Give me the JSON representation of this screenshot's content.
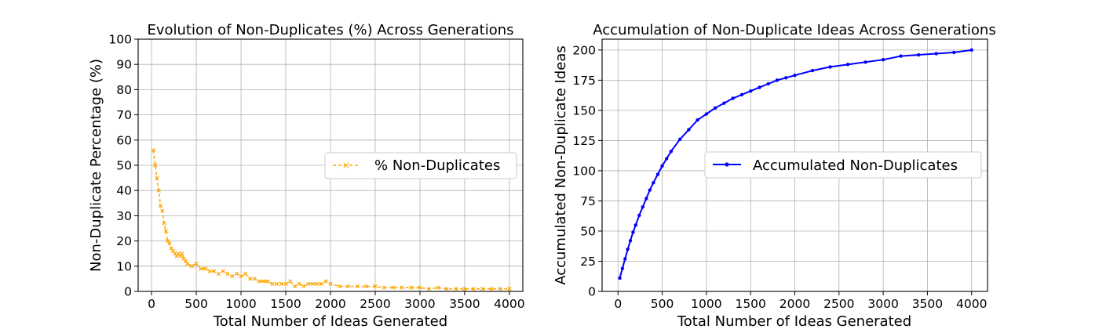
{
  "chart_data": [
    {
      "type": "line",
      "title": "Evolution of Non-Duplicates (%) Across Generations",
      "xlabel": "Total Number of Ideas Generated",
      "ylabel": "Non-Duplicate Percentage (%)",
      "xlim": [
        -150,
        4150
      ],
      "ylim": [
        0,
        100
      ],
      "xticks": [
        0,
        500,
        1000,
        1500,
        2000,
        2500,
        3000,
        3500,
        4000
      ],
      "yticks": [
        0,
        10,
        20,
        30,
        40,
        50,
        60,
        70,
        80,
        90,
        100
      ],
      "grid": true,
      "legend_position": "center-right",
      "series": [
        {
          "name": "% Non-Duplicates",
          "color": "#ffa500",
          "line_style": "dashed",
          "marker": "x",
          "x": [
            20,
            40,
            60,
            80,
            100,
            120,
            140,
            160,
            180,
            200,
            220,
            240,
            260,
            280,
            300,
            320,
            340,
            360,
            380,
            400,
            450,
            500,
            550,
            600,
            650,
            700,
            750,
            800,
            850,
            900,
            950,
            1000,
            1050,
            1100,
            1150,
            1200,
            1250,
            1300,
            1350,
            1400,
            1450,
            1500,
            1550,
            1600,
            1650,
            1700,
            1750,
            1800,
            1850,
            1900,
            1950,
            2000,
            2100,
            2200,
            2300,
            2400,
            2500,
            2600,
            2700,
            2800,
            2900,
            3000,
            3100,
            3200,
            3300,
            3400,
            3500,
            3600,
            3700,
            3800,
            3900,
            4000
          ],
          "values": [
            56,
            50,
            45,
            40,
            34,
            32,
            27,
            24,
            20,
            19,
            17,
            16,
            15,
            14,
            15,
            14,
            15,
            13,
            12,
            11,
            10,
            11,
            9,
            9,
            8,
            8,
            7,
            8,
            7,
            6,
            7,
            6,
            7,
            5,
            5,
            4,
            4,
            4,
            3,
            3,
            3,
            3,
            4,
            2,
            3,
            2,
            3,
            3,
            3,
            3,
            4,
            3,
            2,
            2,
            2,
            2,
            2,
            1.5,
            1.5,
            1.5,
            1.5,
            1.5,
            1,
            1.5,
            1,
            1,
            1,
            1,
            1,
            1,
            1,
            1
          ]
        }
      ]
    },
    {
      "type": "line",
      "title": "Accumulation of Non-Duplicate Ideas Across Generations",
      "xlabel": "Total Number of Ideas Generated",
      "ylabel": "Accumulated Non-Duplicate Ideas",
      "xlim": [
        -180,
        4180
      ],
      "ylim": [
        0,
        209
      ],
      "xticks": [
        0,
        500,
        1000,
        1500,
        2000,
        2500,
        3000,
        3500,
        4000
      ],
      "yticks": [
        0,
        25,
        50,
        75,
        100,
        125,
        150,
        175,
        200
      ],
      "grid": true,
      "legend_position": "center-right",
      "series": [
        {
          "name": "Accumulated Non-Duplicates",
          "color": "#0000ff",
          "line_style": "solid",
          "marker": "dot",
          "x": [
            20,
            50,
            80,
            110,
            140,
            170,
            200,
            240,
            280,
            320,
            360,
            400,
            450,
            500,
            550,
            600,
            700,
            800,
            900,
            1000,
            1100,
            1200,
            1300,
            1400,
            1500,
            1600,
            1700,
            1800,
            1900,
            2000,
            2200,
            2400,
            2600,
            2800,
            3000,
            3200,
            3400,
            3600,
            3800,
            4000
          ],
          "values": [
            11,
            19,
            27,
            35,
            42,
            49,
            55,
            63,
            70,
            77,
            84,
            90,
            97,
            104,
            110,
            116,
            126,
            134,
            142,
            147,
            152,
            156,
            160,
            163,
            166,
            169,
            172,
            175,
            177,
            179,
            183,
            186,
            188,
            190,
            192,
            195,
            196,
            197,
            198,
            200
          ]
        }
      ]
    }
  ]
}
